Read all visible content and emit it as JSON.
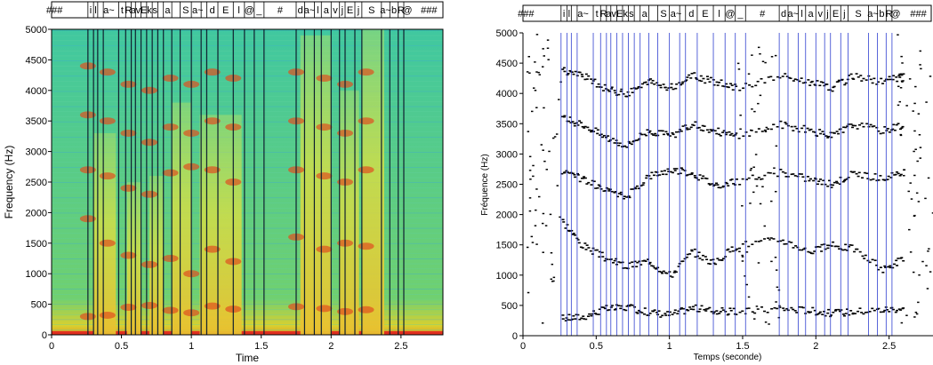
{
  "chart_data": [
    {
      "type": "heatmap",
      "xlabel": "Time",
      "ylabel": "Frequency (Hz)",
      "xlim": [
        0,
        2.8
      ],
      "ylim": [
        0,
        5000
      ],
      "x_ticks": [
        "0",
        "0.5",
        "1",
        "1.5",
        "2",
        "2.5"
      ],
      "y_ticks": [
        "0",
        "500",
        "1000",
        "1500",
        "2000",
        "2500",
        "3000",
        "3500",
        "4000",
        "4500",
        "5000"
      ],
      "segment_boundaries": [
        0.26,
        0.3,
        0.33,
        0.37,
        0.48,
        0.53,
        0.57,
        0.6,
        0.64,
        0.68,
        0.72,
        0.76,
        0.8,
        0.86,
        0.92,
        1.0,
        1.07,
        1.11,
        1.19,
        1.3,
        1.38,
        1.45,
        1.52,
        1.75,
        1.81,
        1.88,
        1.93,
        2.0,
        2.06,
        2.1,
        2.17,
        2.22,
        2.36,
        2.42,
        2.48,
        2.52
      ],
      "phoneme_labels": [
        {
          "t": 0.02,
          "text": "###"
        },
        {
          "t": 0.28,
          "text": "i"
        },
        {
          "t": 0.315,
          "text": "l"
        },
        {
          "t": 0.41,
          "text": "a~"
        },
        {
          "t": 0.505,
          "text": "t"
        },
        {
          "t": 0.55,
          "text": "R"
        },
        {
          "t": 0.585,
          "text": "a"
        },
        {
          "t": 0.62,
          "text": "v"
        },
        {
          "t": 0.66,
          "text": "E"
        },
        {
          "t": 0.7,
          "text": "k"
        },
        {
          "t": 0.74,
          "text": "s"
        },
        {
          "t": 0.83,
          "text": "a"
        },
        {
          "t": 0.96,
          "text": "S"
        },
        {
          "t": 1.045,
          "text": "a~"
        },
        {
          "t": 1.15,
          "text": "d"
        },
        {
          "t": 1.245,
          "text": "E"
        },
        {
          "t": 1.34,
          "text": "l"
        },
        {
          "t": 1.415,
          "text": "@"
        },
        {
          "t": 1.485,
          "text": "_"
        },
        {
          "t": 1.635,
          "text": "#"
        },
        {
          "t": 1.78,
          "text": "d"
        },
        {
          "t": 1.845,
          "text": "a~"
        },
        {
          "t": 1.905,
          "text": "l"
        },
        {
          "t": 1.965,
          "text": "a"
        },
        {
          "t": 2.03,
          "text": "v"
        },
        {
          "t": 2.08,
          "text": "j"
        },
        {
          "t": 2.135,
          "text": "E"
        },
        {
          "t": 2.195,
          "text": "j"
        },
        {
          "t": 2.29,
          "text": "S"
        },
        {
          "t": 2.39,
          "text": "a~"
        },
        {
          "t": 2.45,
          "text": "b"
        },
        {
          "t": 2.5,
          "text": "R"
        },
        {
          "t": 2.545,
          "text": "@"
        },
        {
          "t": 2.7,
          "text": "###"
        }
      ]
    },
    {
      "type": "scatter",
      "xlabel": "Temps (seconde)",
      "ylabel": "Fréquence (Hz)",
      "xlim": [
        0,
        2.8
      ],
      "ylim": [
        0,
        5000
      ],
      "x_ticks": [
        "0",
        "0.5",
        "1",
        "1.5",
        "2",
        "2.5"
      ],
      "y_ticks": [
        "0",
        "500",
        "1000",
        "1500",
        "2000",
        "2500",
        "3000",
        "3500",
        "4000",
        "4500",
        "5000"
      ],
      "formant_tracks": [
        {
          "name": "",
          "points": [
            [
              0.26,
              300
            ],
            [
              0.4,
              320
            ],
            [
              0.55,
              450
            ],
            [
              0.7,
              480
            ],
            [
              0.85,
              400
            ],
            [
              1.0,
              360
            ],
            [
              1.15,
              470
            ],
            [
              1.3,
              420
            ],
            [
              1.45,
              400
            ],
            [
              1.75,
              460
            ],
            [
              1.95,
              430
            ],
            [
              2.1,
              380
            ],
            [
              2.25,
              410
            ],
            [
              2.45,
              440
            ],
            [
              2.6,
              470
            ]
          ]
        },
        {
          "name": "",
          "points": [
            [
              0.26,
              1900
            ],
            [
              0.4,
              1500
            ],
            [
              0.55,
              1300
            ],
            [
              0.7,
              1150
            ],
            [
              0.85,
              1250
            ],
            [
              1.0,
              1000
            ],
            [
              1.15,
              1400
            ],
            [
              1.3,
              1200
            ],
            [
              1.45,
              1500
            ],
            [
              1.75,
              1600
            ],
            [
              1.95,
              1400
            ],
            [
              2.1,
              1500
            ],
            [
              2.25,
              1450
            ],
            [
              2.45,
              1100
            ],
            [
              2.6,
              1300
            ]
          ]
        },
        {
          "name": "",
          "points": [
            [
              0.26,
              2700
            ],
            [
              0.4,
              2600
            ],
            [
              0.55,
              2400
            ],
            [
              0.7,
              2300
            ],
            [
              0.85,
              2650
            ],
            [
              1.0,
              2750
            ],
            [
              1.15,
              2700
            ],
            [
              1.3,
              2500
            ],
            [
              1.45,
              2550
            ],
            [
              1.75,
              2700
            ],
            [
              1.95,
              2600
            ],
            [
              2.1,
              2500
            ],
            [
              2.25,
              2700
            ],
            [
              2.45,
              2600
            ],
            [
              2.6,
              2700
            ]
          ]
        },
        {
          "name": "",
          "points": [
            [
              0.26,
              3600
            ],
            [
              0.4,
              3500
            ],
            [
              0.55,
              3300
            ],
            [
              0.7,
              3150
            ],
            [
              0.85,
              3400
            ],
            [
              1.0,
              3300
            ],
            [
              1.15,
              3500
            ],
            [
              1.3,
              3400
            ],
            [
              1.45,
              3300
            ],
            [
              1.75,
              3500
            ],
            [
              1.95,
              3400
            ],
            [
              2.1,
              3300
            ],
            [
              2.25,
              3500
            ],
            [
              2.45,
              3400
            ],
            [
              2.6,
              3500
            ]
          ]
        },
        {
          "name": "",
          "points": [
            [
              0.26,
              4400
            ],
            [
              0.4,
              4300
            ],
            [
              0.55,
              4100
            ],
            [
              0.7,
              4000
            ],
            [
              0.85,
              4200
            ],
            [
              1.0,
              4100
            ],
            [
              1.15,
              4300
            ],
            [
              1.3,
              4200
            ],
            [
              1.45,
              4100
            ],
            [
              1.75,
              4300
            ],
            [
              1.95,
              4200
            ],
            [
              2.1,
              4100
            ],
            [
              2.25,
              4300
            ],
            [
              2.45,
              4200
            ],
            [
              2.6,
              4300
            ]
          ]
        }
      ]
    }
  ]
}
